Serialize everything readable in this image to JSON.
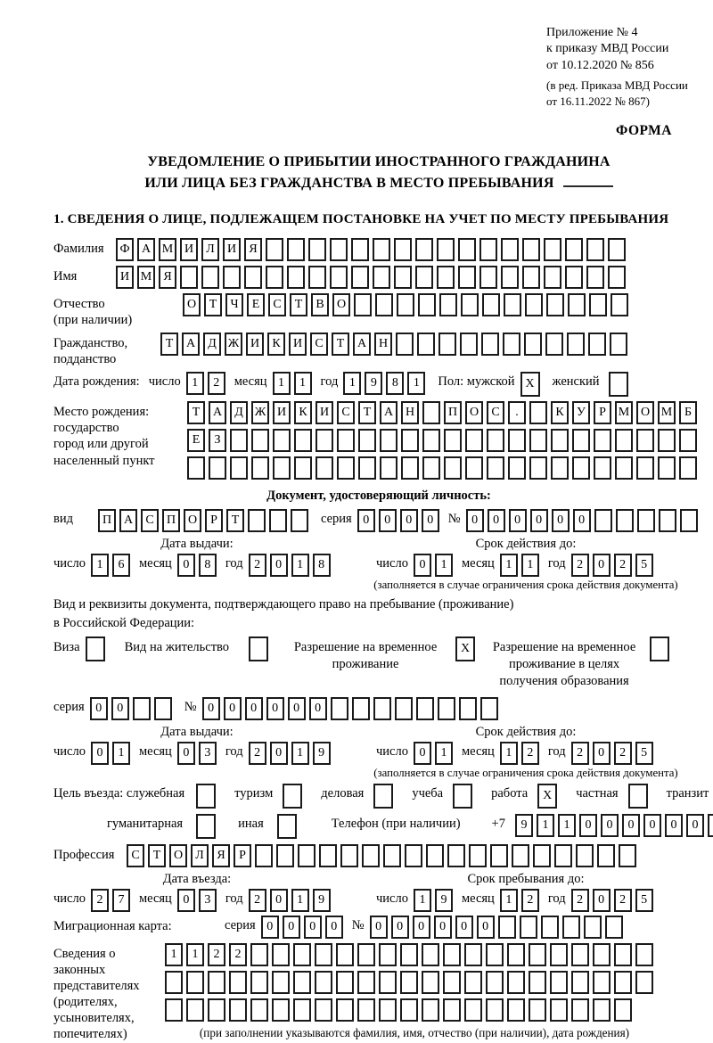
{
  "header": {
    "appendix_line1": "Приложение № 4",
    "appendix_line2": "к приказу МВД России",
    "appendix_line3": "от 10.12.2020 № 856",
    "amendment_line1": "(в ред. Приказа МВД России",
    "amendment_line2": "от 16.11.2022 № 867)",
    "form_label": "ФОРМА"
  },
  "title": {
    "line1": "УВЕДОМЛЕНИЕ О ПРИБЫТИИ ИНОСТРАННОГО ГРАЖДАНИНА",
    "line2": "ИЛИ ЛИЦА БЕЗ ГРАЖДАНСТВА В МЕСТО ПРЕБЫВАНИЯ"
  },
  "section1": {
    "heading": "1. СВЕДЕНИЯ О ЛИЦЕ, ПОДЛЕЖАЩЕМ ПОСТАНОВКЕ НА УЧЕТ ПО МЕСТУ ПРЕБЫВАНИЯ"
  },
  "common": {
    "day": "число",
    "month": "месяц",
    "year": "год",
    "series": "серия",
    "number": "№",
    "validity_note": "(заполняется в случае ограничения срока действия документа)"
  },
  "person": {
    "surname": {
      "label": "Фамилия",
      "cells": {
        "value": "ФАМИЛИЯ",
        "len": 24
      }
    },
    "name": {
      "label": "Имя",
      "cells": {
        "value": "ИМЯ",
        "len": 24
      }
    },
    "patronymic": {
      "label1": "Отчество",
      "label2": "(при наличии)",
      "cells": {
        "value": "ОТЧЕСТВО",
        "len": 21
      }
    },
    "citizenship": {
      "label1": "Гражданство,",
      "label2": "подданство",
      "cells": {
        "value": "ТАДЖИКИСТАН",
        "len": 22
      }
    },
    "birth_date": {
      "label": "Дата рождения:",
      "day": {
        "value": "12",
        "len": 2
      },
      "month": {
        "value": "11",
        "len": 2
      },
      "year": {
        "value": "1981",
        "len": 4
      }
    },
    "sex": {
      "label": "Пол: мужской",
      "male": {
        "value": "X",
        "len": 1
      },
      "female_label": "женский",
      "female": {
        "value": "",
        "len": 1
      }
    },
    "birthplace": {
      "label1": "Место рождения:",
      "label2": "государство",
      "label3": "город или другой",
      "label4": "населенный пункт",
      "row1": {
        "value": "ТАДЖИКИСТАН ПОС. КУРМОМБ",
        "len": 24
      },
      "row2": {
        "value": "ЕЗ",
        "len": 24
      },
      "row3": {
        "value": "",
        "len": 24
      }
    }
  },
  "identity_doc": {
    "heading": "Документ, удостоверяющий личность:",
    "type_label": "вид",
    "type": {
      "value": "ПАСПОРТ",
      "len": 10
    },
    "series": {
      "value": "0000",
      "len": 4
    },
    "number": {
      "value": "000000",
      "len": 11
    },
    "issue_heading": "Дата выдачи:",
    "issue_day": {
      "value": "16",
      "len": 2
    },
    "issue_month": {
      "value": "08",
      "len": 2
    },
    "issue_year": {
      "value": "2018",
      "len": 4
    },
    "valid_heading": "Срок действия до:",
    "valid_day": {
      "value": "01",
      "len": 2
    },
    "valid_month": {
      "value": "11",
      "len": 2
    },
    "valid_year": {
      "value": "2025",
      "len": 4
    }
  },
  "residence_doc": {
    "intro1": "Вид и реквизиты документа, подтверждающего право на пребывание (проживание)",
    "intro2": "в Российской Федерации:",
    "visa_label": "Виза",
    "visa": {
      "value": "",
      "len": 1
    },
    "residence_permit_label": "Вид на жительство",
    "residence_permit": {
      "value": "",
      "len": 1
    },
    "temp_permit_label": "Разрешение на временное проживание",
    "temp_permit": {
      "value": "X",
      "len": 1
    },
    "temp_permit_edu_label": "Разрешение на временное проживание в целях получения образования",
    "temp_permit_edu": {
      "value": "",
      "len": 1
    },
    "series": {
      "value": "00",
      "len": 4
    },
    "number": {
      "value": "000000",
      "len": 14
    },
    "issue_heading": "Дата выдачи:",
    "issue_day": {
      "value": "01",
      "len": 2
    },
    "issue_month": {
      "value": "03",
      "len": 2
    },
    "issue_year": {
      "value": "2019",
      "len": 4
    },
    "valid_heading": "Срок действия до:",
    "valid_day": {
      "value": "01",
      "len": 2
    },
    "valid_month": {
      "value": "12",
      "len": 2
    },
    "valid_year": {
      "value": "2025",
      "len": 4
    }
  },
  "purpose": {
    "prefix": "Цель въезда: служебная",
    "official": {
      "value": "",
      "len": 1
    },
    "tourism_label": "туризм",
    "tourism": {
      "value": "",
      "len": 1
    },
    "business_label": "деловая",
    "business": {
      "value": "",
      "len": 1
    },
    "study_label": "учеба",
    "study": {
      "value": "",
      "len": 1
    },
    "work_label": "работа",
    "work": {
      "value": "X",
      "len": 1
    },
    "private_label": "частная",
    "private": {
      "value": "",
      "len": 1
    },
    "transit_label": "транзит",
    "transit": {
      "value": "",
      "len": 1
    },
    "humanitarian_label": "гуманитарная",
    "humanitarian": {
      "value": "",
      "len": 1
    },
    "other_label": "иная",
    "other": {
      "value": "",
      "len": 1
    }
  },
  "phone": {
    "label": "Телефон (при наличии)",
    "prefix": "+7",
    "cells": {
      "value": "911000000",
      "len": 10
    }
  },
  "profession": {
    "label": "Профессия",
    "cells": {
      "value": "СТОЛЯР",
      "len": 24
    }
  },
  "entry": {
    "date_heading": "Дата въезда:",
    "day": {
      "value": "27",
      "len": 2
    },
    "month": {
      "value": "03",
      "len": 2
    },
    "year": {
      "value": "2019",
      "len": 4
    },
    "until_heading": "Срок пребывания до:",
    "until_day": {
      "value": "19",
      "len": 2
    },
    "until_month": {
      "value": "12",
      "len": 2
    },
    "until_year": {
      "value": "2025",
      "len": 4
    }
  },
  "migration_card": {
    "label": "Миграционная карта:",
    "series": {
      "value": "0000",
      "len": 4
    },
    "number": {
      "value": "000000",
      "len": 12
    }
  },
  "representatives": {
    "label1": "Сведения о",
    "label2": "законных",
    "label3": "представителях",
    "label4": "(родителях,",
    "label5": "усыновителях,",
    "label6": "попечителях)",
    "row1": {
      "value": "1122",
      "len": 23
    },
    "row2": {
      "value": "",
      "len": 23
    },
    "row3": {
      "value": "",
      "len": 22
    },
    "note": "(при заполнении указываются фамилия, имя, отчество (при наличии), дата рождения)"
  }
}
